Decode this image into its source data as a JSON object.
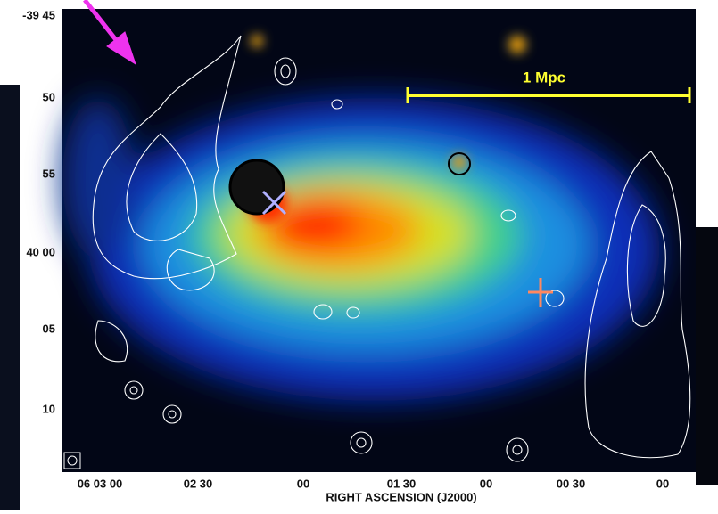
{
  "figure": {
    "y_ticks": [
      "-39 45",
      "50",
      "55",
      "40 00",
      "05",
      "10"
    ],
    "x_ticks": [
      "06 03 00",
      "02 30",
      "00",
      "01 30",
      "00",
      "00 30",
      "00"
    ],
    "x_axis_label": "RIGHT ASCENSION (J2000)",
    "scale_bar_label": "1 Mpc"
  }
}
